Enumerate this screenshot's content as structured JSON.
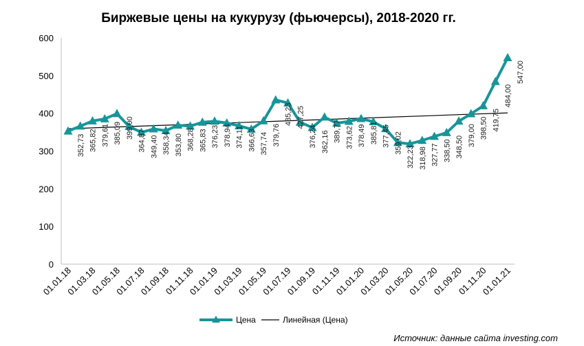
{
  "chart_data": {
    "type": "line",
    "title": "Биржевые цены на кукурузу (фьючерсы), 2018-2020 гг.",
    "source": "Источник: данные сайта investing.com",
    "ylim": [
      0,
      600
    ],
    "yticks": [
      "0",
      "100",
      "200",
      "300",
      "400",
      "500",
      "600"
    ],
    "xtick_labels": [
      "01.01.18",
      "01.03.18",
      "01.05.18",
      "01.07.18",
      "01.09.18",
      "01.11.18",
      "01.01.19",
      "01.03.19",
      "01.05.19",
      "01.07.19",
      "01.09.19",
      "01.11.19",
      "01.01.20",
      "01.03.20",
      "01.05.20",
      "01.07.20",
      "01.09.20",
      "01.11.20",
      "01.01.21"
    ],
    "series": [
      {
        "name": "Цена",
        "color": "#17959a",
        "values": [
          352.73,
          365.82,
          379.61,
          385.09,
          399.0,
          364.87,
          349.4,
          358.34,
          353.8,
          368.28,
          365.83,
          376.23,
          378.94,
          374.11,
          366.63,
          357.74,
          379.76,
          435.23,
          427.25,
          376.24,
          362.16,
          389.77,
          373.62,
          378.49,
          385.81,
          377.45,
          359.02,
          322.23,
          318.98,
          327.77,
          338.5,
          348.5,
          379.0,
          398.5,
          419.75,
          484.0,
          547.0
        ],
        "labels": [
          "352,73",
          "365,82",
          "379,61",
          "385,09",
          "399,00",
          "364,87",
          "349,40",
          "358,34",
          "353,80",
          "368,28",
          "365,83",
          "376,23",
          "378,94",
          "374,11",
          "366,63",
          "357,74",
          "379,76",
          "435,23",
          "427,25",
          "376,24",
          "362,16",
          "389,77",
          "373,62",
          "378,49",
          "385,81",
          "377,45",
          "359,02",
          "322,23",
          "318,98",
          "327,77",
          "338,50",
          "348,50",
          "379,00",
          "398,50",
          "419,75",
          "484,00",
          "547,00"
        ]
      },
      {
        "name": "Линейная (Цена)",
        "color": "#000000",
        "trend_start": 359,
        "trend_end": 401
      }
    ],
    "legend_position": "bottom",
    "grid": false
  }
}
